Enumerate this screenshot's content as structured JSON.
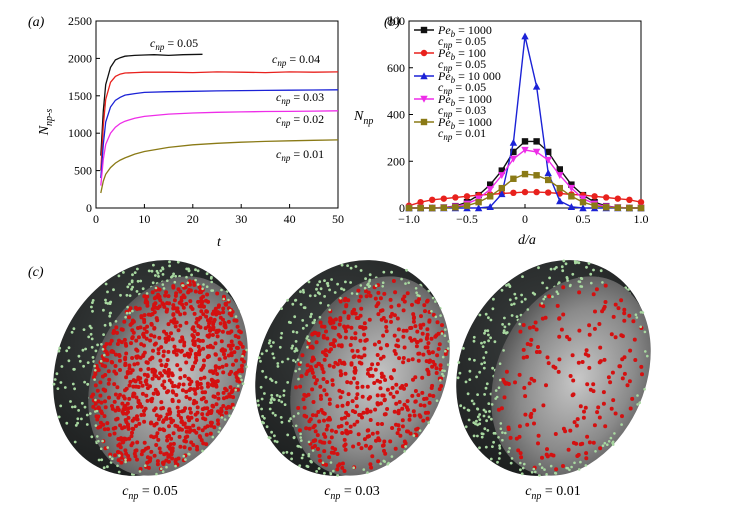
{
  "panels": {
    "a_label": "(a)",
    "b_label": "(b)",
    "c_label": "(c)"
  },
  "chart_data": [
    {
      "type": "line",
      "panel": "(a)",
      "xlabel": "t",
      "ylabel_main": "N",
      "ylabel_sub": "np-s",
      "xlim": [
        0,
        50
      ],
      "ylim": [
        0,
        2500
      ],
      "xticks": [
        "0",
        "10",
        "20",
        "30",
        "40",
        "50"
      ],
      "yticks": [
        "0",
        "500",
        "1000",
        "1500",
        "2000",
        "2500"
      ],
      "grid": false,
      "series": [
        {
          "name": "c_np = 0.05",
          "label_main": "c",
          "label_sub": "np",
          "label_val": " = 0.05",
          "color": "#111111",
          "x": [
            1,
            1.5,
            2,
            3,
            4,
            5,
            6,
            8,
            10,
            12,
            15,
            18,
            22
          ],
          "y": [
            700,
            1300,
            1650,
            1880,
            1980,
            2010,
            2030,
            2040,
            2045,
            2050,
            2040,
            2050,
            2055
          ]
        },
        {
          "name": "c_np = 0.04",
          "label_main": "c",
          "label_sub": "np",
          "label_val": " = 0.04",
          "color": "#e8211d",
          "x": [
            1,
            1.5,
            2,
            3,
            4,
            5,
            6,
            8,
            10,
            15,
            20,
            25,
            30,
            35,
            40,
            45,
            50
          ],
          "y": [
            500,
            1100,
            1450,
            1680,
            1760,
            1790,
            1805,
            1810,
            1815,
            1815,
            1810,
            1820,
            1815,
            1810,
            1820,
            1815,
            1820
          ]
        },
        {
          "name": "c_np = 0.03",
          "label_main": "c",
          "label_sub": "np",
          "label_val": " = 0.03",
          "color": "#1b22d6",
          "x": [
            1,
            1.5,
            2,
            3,
            4,
            5,
            6,
            8,
            10,
            15,
            20,
            25,
            30,
            35,
            40,
            45,
            50
          ],
          "y": [
            400,
            850,
            1150,
            1350,
            1440,
            1480,
            1510,
            1530,
            1545,
            1555,
            1560,
            1565,
            1570,
            1572,
            1575,
            1578,
            1580
          ]
        },
        {
          "name": "c_np = 0.02",
          "label_main": "c",
          "label_sub": "np",
          "label_val": " = 0.02",
          "color": "#ee2de8",
          "x": [
            1,
            1.5,
            2,
            3,
            4,
            5,
            6,
            8,
            10,
            15,
            20,
            25,
            30,
            35,
            40,
            45,
            50
          ],
          "y": [
            300,
            650,
            850,
            1000,
            1080,
            1130,
            1160,
            1200,
            1225,
            1255,
            1270,
            1280,
            1285,
            1290,
            1292,
            1295,
            1300
          ]
        },
        {
          "name": "c_np = 0.01",
          "label_main": "c",
          "label_sub": "np",
          "label_val": " = 0.01",
          "color": "#8a7a16",
          "x": [
            1,
            1.5,
            2,
            3,
            4,
            5,
            6,
            8,
            10,
            15,
            20,
            25,
            30,
            35,
            40,
            45,
            50
          ],
          "y": [
            200,
            360,
            450,
            540,
            600,
            640,
            670,
            720,
            755,
            810,
            845,
            865,
            880,
            890,
            898,
            905,
            910
          ]
        }
      ]
    },
    {
      "type": "line",
      "panel": "(b)",
      "xlabel": "d/a",
      "ylabel_main": "N",
      "ylabel_sub": "np",
      "xlim": [
        -1.0,
        1.0
      ],
      "ylim": [
        0,
        800
      ],
      "xticks": [
        "−1.0",
        "−0.5",
        "0",
        "0.5",
        "1.0"
      ],
      "yticks": [
        "0",
        "200",
        "400",
        "600",
        "800"
      ],
      "grid": false,
      "legend_position": "top-left",
      "x": [
        -1.0,
        -0.9,
        -0.8,
        -0.7,
        -0.6,
        -0.5,
        -0.4,
        -0.3,
        -0.2,
        -0.1,
        0.0,
        0.1,
        0.2,
        0.3,
        0.4,
        0.5,
        0.6,
        0.7,
        0.8,
        0.9,
        1.0
      ],
      "series": [
        {
          "name": "Pe_b = 1000, c_np = 0.05",
          "pe_val": " = 1000",
          "c_val": " = 0.05",
          "color": "#111111",
          "marker": "square",
          "values": [
            0,
            0,
            0,
            2,
            8,
            25,
            55,
            100,
            160,
            240,
            285,
            285,
            240,
            165,
            100,
            55,
            25,
            8,
            2,
            0,
            0
          ]
        },
        {
          "name": "Pe_b = 100, c_np = 0.05",
          "pe_val": " = 100",
          "c_val": " = 0.05",
          "color": "#e8211d",
          "marker": "circle",
          "values": [
            10,
            25,
            35,
            40,
            45,
            50,
            55,
            58,
            62,
            65,
            68,
            68,
            66,
            62,
            58,
            55,
            50,
            45,
            40,
            35,
            25
          ]
        },
        {
          "name": "Pe_b = 10 000, c_np = 0.05",
          "pe_val": " = 10 000",
          "c_val": " = 0.05",
          "color": "#1b22d6",
          "marker": "triangle",
          "values": [
            0,
            0,
            0,
            0,
            0,
            0,
            0,
            5,
            60,
            280,
            735,
            520,
            150,
            30,
            5,
            0,
            0,
            0,
            0,
            0,
            0
          ]
        },
        {
          "name": "Pe_b = 1000, c_np = 0.03",
          "pe_val": " = 1000",
          "c_val": " = 0.03",
          "color": "#ee2de8",
          "marker": "triangle-down",
          "values": [
            0,
            0,
            0,
            2,
            6,
            18,
            40,
            80,
            140,
            210,
            248,
            240,
            205,
            140,
            85,
            40,
            18,
            6,
            2,
            0,
            0
          ]
        },
        {
          "name": "Pe_b = 1000, c_np = 0.01",
          "pe_val": " = 1000",
          "c_val": " = 0.01",
          "color": "#8a7a16",
          "marker": "square",
          "values": [
            0,
            0,
            0,
            1,
            3,
            10,
            25,
            50,
            85,
            125,
            145,
            140,
            120,
            85,
            50,
            25,
            10,
            3,
            1,
            0,
            0
          ]
        }
      ]
    }
  ],
  "legend_b": {
    "pe_main": "Pe",
    "pe_sub": "b",
    "c_main": "c",
    "c_sub": "np"
  },
  "renderings": [
    {
      "caption_main": "c",
      "caption_sub": "np",
      "caption_val": " = 0.05",
      "density": 0.05
    },
    {
      "caption_main": "c",
      "caption_sub": "np",
      "caption_val": " = 0.03",
      "density": 0.03
    },
    {
      "caption_main": "c",
      "caption_sub": "np",
      "caption_val": " = 0.01",
      "density": 0.01
    }
  ],
  "colors": {
    "particle_red": "#d41010",
    "particle_green": "#a8d8a0",
    "shell_dark": "#2a2d2d",
    "inner_grey": "#8a8a8a"
  }
}
